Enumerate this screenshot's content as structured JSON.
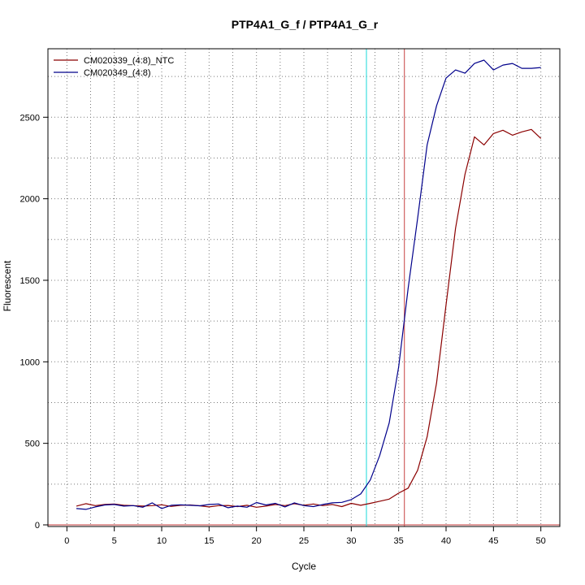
{
  "chart_data": {
    "type": "line",
    "title": "PTP4A1_G_f / PTP4A1_G_r",
    "xlabel": "Cycle",
    "ylabel": "Fluorescent",
    "xlim": [
      -2,
      52
    ],
    "ylim": [
      -10,
      2920
    ],
    "xticks": [
      0,
      5,
      10,
      15,
      20,
      25,
      30,
      35,
      40,
      45,
      50
    ],
    "yticks": [
      0,
      500,
      1000,
      1500,
      2000,
      2500
    ],
    "grid": "dotted",
    "legend": "top-left",
    "series": [
      {
        "name": "CM020339_(4:8)_NTC",
        "color": "#8b0000",
        "x": [
          1,
          2,
          3,
          4,
          5,
          6,
          7,
          8,
          9,
          10,
          11,
          12,
          13,
          14,
          15,
          16,
          17,
          18,
          19,
          20,
          21,
          22,
          23,
          24,
          25,
          26,
          27,
          28,
          29,
          30,
          31,
          32,
          33,
          34,
          35,
          36,
          37,
          38,
          39,
          40,
          41,
          42,
          43,
          44,
          45,
          46,
          47,
          48,
          49,
          50
        ],
        "values": [
          115,
          130,
          118,
          125,
          128,
          120,
          118,
          115,
          118,
          123,
          113,
          120,
          122,
          117,
          110,
          118,
          119,
          112,
          120,
          108,
          115,
          125,
          118,
          130,
          120,
          128,
          118,
          125,
          112,
          132,
          120,
          132,
          145,
          158,
          195,
          225,
          335,
          540,
          870,
          1350,
          1820,
          2150,
          2380,
          2330,
          2400,
          2420,
          2390,
          2410,
          2425,
          2370
        ]
      },
      {
        "name": "CM020349_(4:8)",
        "color": "#00008b",
        "x": [
          1,
          2,
          3,
          4,
          5,
          6,
          7,
          8,
          9,
          10,
          11,
          12,
          13,
          14,
          15,
          16,
          17,
          18,
          19,
          20,
          21,
          22,
          23,
          24,
          25,
          26,
          27,
          28,
          29,
          30,
          31,
          32,
          33,
          34,
          35,
          36,
          37,
          38,
          39,
          40,
          41,
          42,
          43,
          44,
          45,
          46,
          47,
          48,
          49,
          50
        ],
        "values": [
          100,
          95,
          110,
          122,
          125,
          115,
          118,
          108,
          135,
          100,
          120,
          123,
          120,
          117,
          125,
          128,
          105,
          115,
          108,
          137,
          122,
          132,
          110,
          135,
          118,
          112,
          125,
          135,
          138,
          155,
          190,
          275,
          425,
          625,
          970,
          1450,
          1880,
          2330,
          2570,
          2740,
          2790,
          2770,
          2830,
          2850,
          2790,
          2820,
          2830,
          2800,
          2800,
          2805
        ]
      }
    ],
    "vlines": [
      {
        "x": 31.6,
        "color": "#40e0e0"
      },
      {
        "x": 35.6,
        "color": "#d06060"
      }
    ],
    "hlines": [
      {
        "y": 0,
        "color": "#d06060"
      }
    ]
  }
}
